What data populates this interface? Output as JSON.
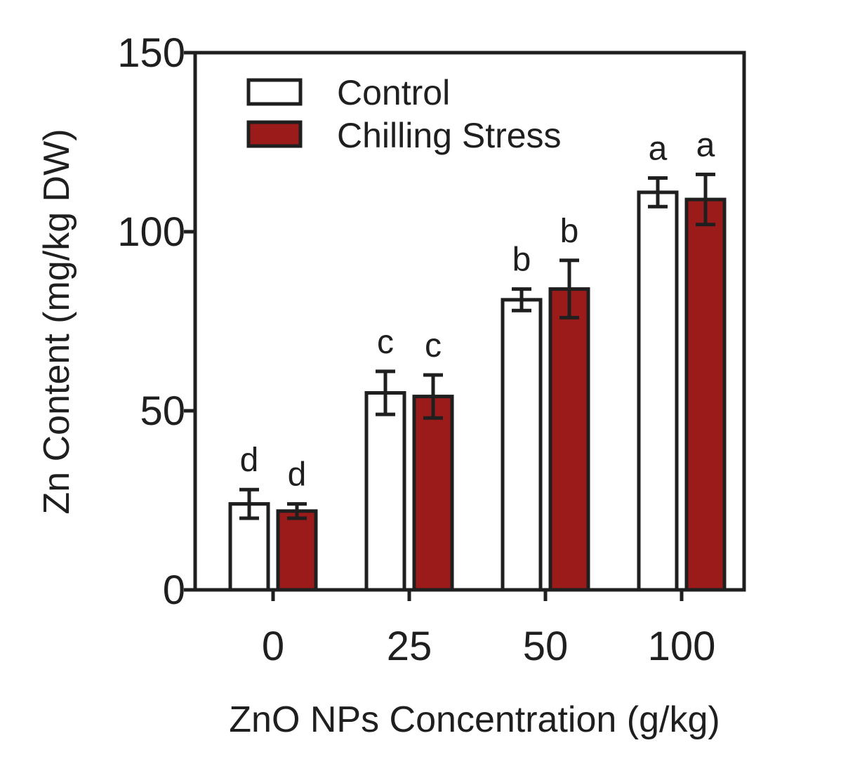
{
  "colors": {
    "axis": "#1f1f1f",
    "control_fill": "#ffffff",
    "stress_fill": "#9b1b1b"
  },
  "chart_data": {
    "type": "bar",
    "title": "",
    "xlabel": "ZnO NPs Concentration (g/kg)",
    "ylabel": "Zn Content (mg/kg DW)",
    "ylim": [
      0,
      150
    ],
    "yticks": [
      "0",
      "50",
      "100",
      "150"
    ],
    "categories": [
      "0",
      "25",
      "50",
      "100"
    ],
    "legend_position": "top-left",
    "series": [
      {
        "name": "Control",
        "values": [
          24,
          55,
          81,
          111
        ],
        "errors": [
          4,
          6,
          3,
          4
        ],
        "letters": [
          "d",
          "c",
          "b",
          "a"
        ]
      },
      {
        "name": "Chilling Stress",
        "values": [
          22,
          54,
          84,
          109
        ],
        "errors": [
          2,
          6,
          8,
          7
        ],
        "letters": [
          "d",
          "c",
          "b",
          "a"
        ]
      }
    ]
  }
}
